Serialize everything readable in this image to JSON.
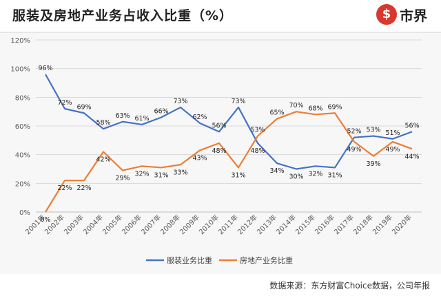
{
  "header": {
    "title": "服装及房地产业务占收入比重（%）",
    "logo_symbol": "$",
    "logo_text": "市界"
  },
  "footer": {
    "source": "数据来源：东方财富Choice数据，公司年报"
  },
  "colors": {
    "series_apparel": "#4472c4",
    "series_realestate": "#ed7d31"
  },
  "chart_data": {
    "type": "line",
    "title": "服装及房地产业务占收入比重（%）",
    "xlabel": "",
    "ylabel": "",
    "ylim": [
      0,
      120
    ],
    "y_ticks": [
      "0%",
      "20%",
      "40%",
      "60%",
      "80%",
      "100%",
      "120%"
    ],
    "grid": true,
    "legend_position": "bottom",
    "categories": [
      "2001年",
      "2002年",
      "2003年",
      "2004年",
      "2005年",
      "2006年",
      "2007年",
      "2008年",
      "2009年",
      "2010年",
      "2011年",
      "2012年",
      "2013年",
      "2014年",
      "2015年",
      "2016年",
      "2017年",
      "2018年",
      "2019年",
      "2020年"
    ],
    "series": [
      {
        "name": "服装业务比重",
        "values": [
          96,
          72,
          69,
          58,
          63,
          61,
          66,
          73,
          62,
          56,
          73,
          48,
          34,
          30,
          32,
          31,
          52,
          53,
          51,
          56
        ],
        "labels": [
          "96%",
          "72%",
          "69%",
          "58%",
          "63%",
          "61%",
          "66%",
          "73%",
          "62%",
          "56%",
          "73%",
          "48%",
          "34%",
          "30%",
          "32%",
          "31%",
          "52%",
          "53%",
          "51%",
          "56%"
        ]
      },
      {
        "name": "房地产业务比重",
        "values": [
          0,
          22,
          22,
          42,
          29,
          32,
          31,
          33,
          43,
          48,
          31,
          53,
          65,
          70,
          68,
          69,
          49,
          39,
          49,
          44
        ],
        "labels": [
          "0%",
          "22%",
          "22%",
          "42%",
          "29%",
          "32%",
          "31%",
          "33%",
          "43%",
          "48%",
          "31%",
          "53%",
          "65%",
          "70%",
          "68%",
          "69%",
          "49%",
          "39%",
          "49%",
          "44%"
        ]
      }
    ]
  }
}
